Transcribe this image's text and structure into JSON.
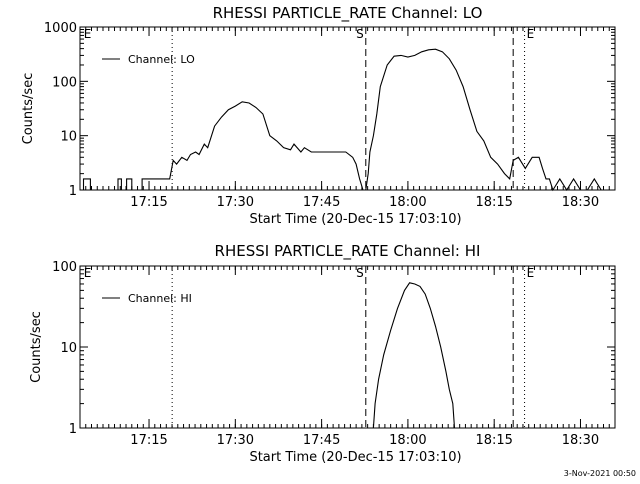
{
  "footer_date": "3-Nov-2021 00:50",
  "chart_data": [
    {
      "type": "line",
      "title": "RHESSI PARTICLE_RATE Channel: LO",
      "xlabel": "Start Time (20-Dec-15 17:03:10)",
      "ylabel": "Counts/sec",
      "yscale": "log",
      "ylim": [
        1,
        1000
      ],
      "yticks": [
        1,
        10,
        100,
        1000
      ],
      "ytick_labels": [
        "1",
        "10",
        "100",
        "1000"
      ],
      "xlim": [
        17.05,
        18.6
      ],
      "xticks": [
        17.25,
        17.5,
        17.75,
        18.0,
        18.25,
        18.5
      ],
      "xtick_labels": [
        "17:15",
        "17:30",
        "17:45",
        "18:00",
        "18:15",
        "18:30"
      ],
      "legend": {
        "label": "Channel: LO",
        "position": "top-left"
      },
      "markers": [
        {
          "label": "E",
          "x": 17.055,
          "style": "none",
          "label_side": "right"
        },
        {
          "label": "",
          "x": 17.317,
          "style": "dotted"
        },
        {
          "label": "S",
          "x": 17.878,
          "style": "dashed",
          "label_side": "left"
        },
        {
          "label": "",
          "x": 18.305,
          "style": "dashed"
        },
        {
          "label": "E",
          "x": 18.338,
          "style": "dotted",
          "label_side": "right"
        },
        {
          "label": "",
          "x": 18.6,
          "style": "dotted"
        }
      ],
      "series": [
        {
          "name": "Channel: LO",
          "x": [
            17.05,
            17.06,
            17.06,
            17.08,
            17.08,
            17.16,
            17.16,
            17.17,
            17.17,
            17.185,
            17.185,
            17.2,
            17.2,
            17.23,
            17.23,
            17.26,
            17.27,
            17.31,
            17.32,
            17.33,
            17.345,
            17.36,
            17.37,
            17.385,
            17.395,
            17.41,
            17.42,
            17.44,
            17.46,
            17.48,
            17.5,
            17.52,
            17.54,
            17.56,
            17.58,
            17.6,
            17.62,
            17.64,
            17.66,
            17.67,
            17.69,
            17.7,
            17.72,
            17.74,
            17.76,
            17.78,
            17.8,
            17.82,
            17.84,
            17.85,
            17.86,
            17.87,
            17.878,
            17.885,
            17.89,
            17.9,
            17.91,
            17.92,
            17.94,
            17.96,
            17.98,
            18.0,
            18.02,
            18.04,
            18.06,
            18.08,
            18.1,
            18.12,
            18.14,
            18.16,
            18.18,
            18.2,
            18.22,
            18.24,
            18.26,
            18.28,
            18.295,
            18.305,
            18.32,
            18.34,
            18.36,
            18.38,
            18.39,
            18.4,
            18.41,
            18.42,
            18.44,
            18.46,
            18.48,
            18.5,
            18.52,
            18.54,
            18.56,
            18.58,
            18.6
          ],
          "y": [
            1,
            1,
            1.6,
            1.6,
            1,
            1,
            1.6,
            1.6,
            1,
            1,
            1.6,
            1.6,
            1,
            1,
            1.6,
            1.6,
            1.6,
            1.6,
            3.5,
            3,
            4,
            3.5,
            4.5,
            5,
            4.5,
            7,
            6,
            15,
            22,
            30,
            35,
            42,
            40,
            33,
            25,
            10,
            8,
            6,
            5.5,
            7,
            5,
            6,
            5,
            5,
            5,
            5,
            5,
            5,
            4,
            3,
            1.6,
            1,
            1,
            2,
            5,
            10,
            25,
            80,
            200,
            290,
            300,
            280,
            300,
            350,
            380,
            390,
            350,
            260,
            160,
            80,
            30,
            12,
            8,
            4,
            3,
            2,
            1.6,
            3.5,
            4,
            2.5,
            4,
            4,
            2.5,
            1.6,
            1.6,
            1,
            1.6,
            1,
            1.6,
            1,
            1,
            1.6,
            1,
            1,
            1
          ]
        }
      ]
    },
    {
      "type": "line",
      "title": "RHESSI PARTICLE_RATE Channel: HI",
      "xlabel": "Start Time (20-Dec-15 17:03:10)",
      "ylabel": "Counts/sec",
      "yscale": "log",
      "ylim": [
        1,
        100
      ],
      "yticks": [
        1,
        10,
        100
      ],
      "ytick_labels": [
        "1",
        "10",
        "100"
      ],
      "xlim": [
        17.05,
        18.6
      ],
      "xticks": [
        17.25,
        17.5,
        17.75,
        18.0,
        18.25,
        18.5
      ],
      "xtick_labels": [
        "17:15",
        "17:30",
        "17:45",
        "18:00",
        "18:15",
        "18:30"
      ],
      "legend": {
        "label": "Channel: HI",
        "position": "top-left"
      },
      "markers": [
        {
          "label": "E",
          "x": 17.055,
          "style": "none",
          "label_side": "right"
        },
        {
          "label": "",
          "x": 17.317,
          "style": "dotted"
        },
        {
          "label": "S",
          "x": 17.878,
          "style": "dashed",
          "label_side": "left"
        },
        {
          "label": "",
          "x": 18.305,
          "style": "dashed"
        },
        {
          "label": "E",
          "x": 18.338,
          "style": "dotted",
          "label_side": "right"
        },
        {
          "label": "",
          "x": 18.6,
          "style": "dotted"
        }
      ],
      "series": [
        {
          "name": "Channel: HI",
          "x": [
            17.9,
            17.905,
            17.915,
            17.93,
            17.95,
            17.97,
            17.99,
            18.005,
            18.02,
            18.035,
            18.05,
            18.065,
            18.08,
            18.095,
            18.11,
            18.12,
            18.13,
            18.135
          ],
          "y": [
            1,
            2,
            4,
            8,
            16,
            30,
            50,
            62,
            60,
            56,
            45,
            30,
            18,
            10,
            5,
            3,
            2,
            1
          ]
        }
      ]
    }
  ]
}
